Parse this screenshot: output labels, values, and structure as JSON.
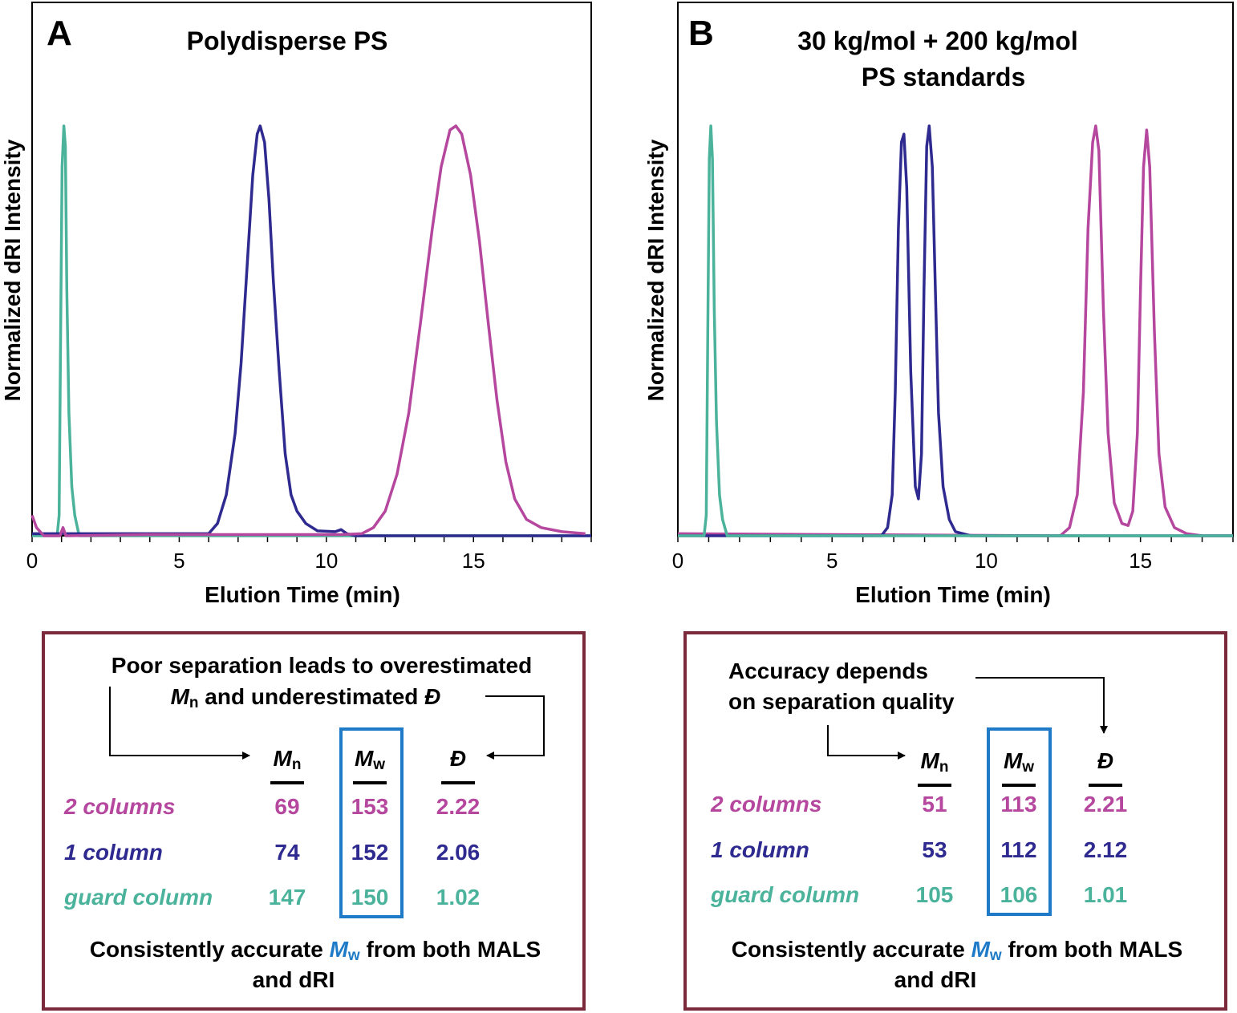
{
  "colors": {
    "two_columns": "#b5479e",
    "one_column": "#2e2a8f",
    "guard_column": "#4bb39b",
    "box_border": "#7a2a3a",
    "mw_box": "#1f7bc8",
    "mw_text": "#1f7bc8"
  },
  "chart_data": [
    {
      "type": "line",
      "panel_label": "A",
      "title": "Polydisperse PS",
      "xlabel": "Elution Time (min)",
      "ylabel": "Normalized dRI Intensity",
      "xlim": [
        0,
        19
      ],
      "ylim": [
        0,
        1.3
      ],
      "xticks": [
        0,
        5,
        10,
        15
      ],
      "grid": false,
      "series": [
        {
          "key": "guard_column",
          "points": [
            [
              0,
              0
            ],
            [
              0.85,
              0
            ],
            [
              0.92,
              0.05
            ],
            [
              0.97,
              0.5
            ],
            [
              1.02,
              0.9
            ],
            [
              1.08,
              1.0
            ],
            [
              1.13,
              0.95
            ],
            [
              1.18,
              0.6
            ],
            [
              1.25,
              0.3
            ],
            [
              1.35,
              0.12
            ],
            [
              1.45,
              0.05
            ],
            [
              1.6,
              0
            ],
            [
              19,
              0
            ]
          ]
        },
        {
          "key": "one_column",
          "points": [
            [
              0,
              0.005
            ],
            [
              6.0,
              0.005
            ],
            [
              6.3,
              0.03
            ],
            [
              6.6,
              0.1
            ],
            [
              6.9,
              0.25
            ],
            [
              7.1,
              0.42
            ],
            [
              7.3,
              0.65
            ],
            [
              7.5,
              0.88
            ],
            [
              7.65,
              0.98
            ],
            [
              7.75,
              1.0
            ],
            [
              7.9,
              0.96
            ],
            [
              8.05,
              0.82
            ],
            [
              8.2,
              0.62
            ],
            [
              8.4,
              0.4
            ],
            [
              8.6,
              0.2
            ],
            [
              8.8,
              0.1
            ],
            [
              9.0,
              0.06
            ],
            [
              9.3,
              0.03
            ],
            [
              9.7,
              0.012
            ],
            [
              10.3,
              0.01
            ],
            [
              10.5,
              0.015
            ],
            [
              10.7,
              0.005
            ],
            [
              11,
              0
            ],
            [
              19,
              0
            ]
          ]
        },
        {
          "key": "two_columns",
          "points": [
            [
              0,
              0.05
            ],
            [
              0.15,
              0.02
            ],
            [
              0.4,
              0
            ],
            [
              0.95,
              0
            ],
            [
              1.05,
              0.02
            ],
            [
              1.15,
              0
            ],
            [
              3.9,
              0.003
            ],
            [
              10.5,
              0.003
            ],
            [
              11.2,
              0.005
            ],
            [
              11.6,
              0.02
            ],
            [
              12.0,
              0.06
            ],
            [
              12.4,
              0.15
            ],
            [
              12.8,
              0.3
            ],
            [
              13.2,
              0.52
            ],
            [
              13.6,
              0.75
            ],
            [
              13.9,
              0.9
            ],
            [
              14.2,
              0.99
            ],
            [
              14.4,
              1.0
            ],
            [
              14.6,
              0.98
            ],
            [
              14.9,
              0.88
            ],
            [
              15.2,
              0.72
            ],
            [
              15.5,
              0.52
            ],
            [
              15.8,
              0.33
            ],
            [
              16.1,
              0.18
            ],
            [
              16.4,
              0.09
            ],
            [
              16.8,
              0.04
            ],
            [
              17.3,
              0.02
            ],
            [
              18,
              0.01
            ],
            [
              18.8,
              0.005
            ]
          ]
        }
      ]
    },
    {
      "type": "line",
      "panel_label": "B",
      "title": "30 kg/mol + 200 kg/mol",
      "title_line2": "PS standards",
      "xlabel": "Elution Time (min)",
      "ylabel": "Normalized dRI Intensity",
      "xlim": [
        0,
        18
      ],
      "ylim": [
        0,
        1.3
      ],
      "xticks": [
        0,
        5,
        10,
        15
      ],
      "grid": false,
      "series": [
        {
          "key": "two_columns",
          "points": [
            [
              0,
              0.005
            ],
            [
              12.4,
              0
            ],
            [
              12.7,
              0.02
            ],
            [
              12.95,
              0.1
            ],
            [
              13.15,
              0.35
            ],
            [
              13.3,
              0.75
            ],
            [
              13.45,
              0.96
            ],
            [
              13.55,
              1.0
            ],
            [
              13.65,
              0.94
            ],
            [
              13.8,
              0.55
            ],
            [
              13.95,
              0.25
            ],
            [
              14.15,
              0.08
            ],
            [
              14.4,
              0.03
            ],
            [
              14.6,
              0.025
            ],
            [
              14.75,
              0.06
            ],
            [
              14.9,
              0.25
            ],
            [
              15.0,
              0.6
            ],
            [
              15.1,
              0.9
            ],
            [
              15.2,
              0.99
            ],
            [
              15.3,
              0.9
            ],
            [
              15.45,
              0.5
            ],
            [
              15.6,
              0.2
            ],
            [
              15.8,
              0.07
            ],
            [
              16.1,
              0.02
            ],
            [
              16.5,
              0.005
            ],
            [
              17,
              0
            ],
            [
              18,
              0
            ]
          ]
        },
        {
          "key": "one_column",
          "points": [
            [
              0,
              0
            ],
            [
              6.6,
              0
            ],
            [
              6.8,
              0.02
            ],
            [
              6.95,
              0.1
            ],
            [
              7.05,
              0.35
            ],
            [
              7.15,
              0.75
            ],
            [
              7.25,
              0.96
            ],
            [
              7.33,
              0.98
            ],
            [
              7.42,
              0.85
            ],
            [
              7.55,
              0.4
            ],
            [
              7.7,
              0.12
            ],
            [
              7.8,
              0.09
            ],
            [
              7.9,
              0.2
            ],
            [
              7.98,
              0.6
            ],
            [
              8.07,
              0.95
            ],
            [
              8.15,
              1.0
            ],
            [
              8.25,
              0.9
            ],
            [
              8.35,
              0.6
            ],
            [
              8.45,
              0.3
            ],
            [
              8.6,
              0.12
            ],
            [
              8.8,
              0.04
            ],
            [
              9.0,
              0.01
            ],
            [
              9.5,
              0
            ],
            [
              18,
              0
            ]
          ]
        },
        {
          "key": "guard_column",
          "points": [
            [
              0,
              0
            ],
            [
              0.85,
              0
            ],
            [
              0.92,
              0.05
            ],
            [
              0.97,
              0.5
            ],
            [
              1.02,
              0.92
            ],
            [
              1.07,
              1.0
            ],
            [
              1.12,
              0.92
            ],
            [
              1.18,
              0.55
            ],
            [
              1.25,
              0.28
            ],
            [
              1.35,
              0.1
            ],
            [
              1.45,
              0.04
            ],
            [
              1.6,
              0
            ],
            [
              18,
              0
            ]
          ]
        }
      ]
    }
  ],
  "box_a": {
    "note_line1": "Poor separation leads to overestimated",
    "note_line2_m": "M",
    "note_line2_sub": "n",
    "note_line2_rest": " and underestimated ",
    "note_line2_d": "Đ",
    "headers": {
      "mn": "M",
      "mn_sub": "n",
      "mw": "M",
      "mw_sub": "w",
      "d": "Đ"
    },
    "rows": [
      {
        "label": "2 columns",
        "mn": "69",
        "mw": "153",
        "d": "2.22"
      },
      {
        "label": "1 column",
        "mn": "74",
        "mw": "152",
        "d": "2.06"
      },
      {
        "label": "guard column",
        "mn": "147",
        "mw": "150",
        "d": "1.02"
      }
    ],
    "footer_pre": "Consistently accurate ",
    "footer_m": "M",
    "footer_sub": "w",
    "footer_post": " from both MALS",
    "footer_line2": "and dRI"
  },
  "box_b": {
    "note_line1": "Accuracy depends",
    "note_line2": "on separation quality",
    "headers": {
      "mn": "M",
      "mn_sub": "n",
      "mw": "M",
      "mw_sub": "w",
      "d": "Đ"
    },
    "rows": [
      {
        "label": "2 columns",
        "mn": "51",
        "mw": "113",
        "d": "2.21"
      },
      {
        "label": "1 column",
        "mn": "53",
        "mw": "112",
        "d": "2.12"
      },
      {
        "label": "guard column",
        "mn": "105",
        "mw": "106",
        "d": "1.01"
      }
    ],
    "footer_pre": "Consistently accurate ",
    "footer_m": "M",
    "footer_sub": "w",
    "footer_post": " from both MALS",
    "footer_line2": "and dRI"
  }
}
